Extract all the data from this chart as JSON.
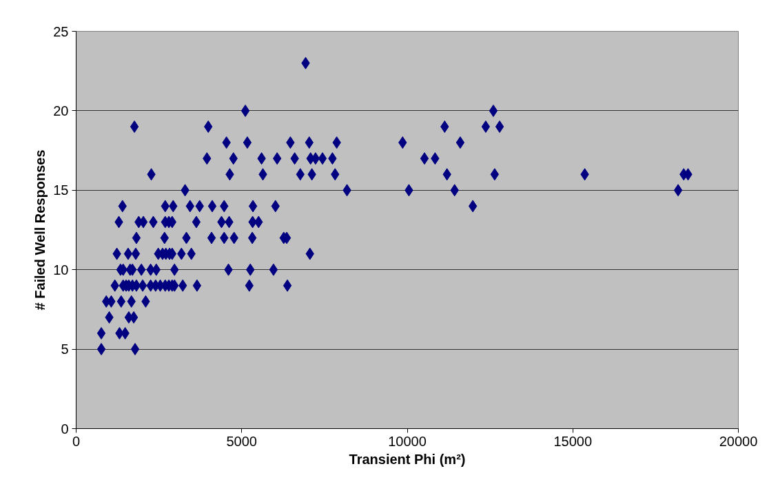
{
  "chart_data": {
    "type": "scatter",
    "xlabel": "Transient Phi (m²)",
    "ylabel": "# Failed Well Responses",
    "xlim": [
      0,
      20000
    ],
    "xticks": [
      0,
      5000,
      10000,
      15000,
      20000
    ],
    "ylim": [
      0,
      25
    ],
    "yticks": [
      0,
      5,
      10,
      15,
      20,
      25
    ],
    "grid": "y",
    "marker": "diamond",
    "series": [
      {
        "color": "#000080",
        "x": [
          6930,
          5110,
          12600,
          11130,
          12370,
          12790,
          1760,
          3990,
          9860,
          11600,
          5170,
          6470,
          7040,
          7870,
          4540,
          10520,
          10840,
          5600,
          6070,
          6600,
          7080,
          7230,
          7440,
          7740,
          3950,
          4750,
          11200,
          12640,
          15360,
          18350,
          18480,
          5640,
          6770,
          7120,
          7820,
          2270,
          4640,
          10050,
          11430,
          18180,
          8180,
          3290,
          11980,
          5340,
          6020,
          1400,
          2690,
          2930,
          3440,
          3730,
          4110,
          4470,
          5330,
          5510,
          1290,
          1890,
          2030,
          2330,
          2690,
          2800,
          2900,
          3630,
          4390,
          4620,
          5320,
          6270,
          6360,
          1820,
          2670,
          3330,
          4090,
          4470,
          4770,
          7060,
          1230,
          1570,
          1800,
          2480,
          2610,
          2710,
          2820,
          2900,
          3180,
          3480,
          5260,
          5960,
          1340,
          1420,
          1630,
          1700,
          1970,
          2250,
          2420,
          2970,
          4600,
          5230,
          6380,
          1170,
          1420,
          1510,
          1590,
          1700,
          1820,
          2010,
          2250,
          2400,
          2540,
          2690,
          2800,
          2900,
          2970,
          3220,
          3650,
          910,
          1060,
          1360,
          1670,
          2100,
          1000,
          1590,
          1740,
          760,
          1310,
          1480,
          760,
          1780
        ],
        "values": [
          23,
          20,
          20,
          19,
          19,
          19,
          19,
          19,
          18,
          18,
          18,
          18,
          18,
          18,
          18,
          17,
          17,
          17,
          17,
          17,
          17,
          17,
          17,
          17,
          17,
          17,
          16,
          16,
          16,
          16,
          16,
          16,
          16,
          16,
          16,
          16,
          16,
          15,
          15,
          15,
          15,
          15,
          14,
          14,
          14,
          14,
          14,
          14,
          14,
          14,
          14,
          14,
          13,
          13,
          13,
          13,
          13,
          13,
          13,
          13,
          13,
          13,
          13,
          13,
          12,
          12,
          12,
          12,
          12,
          12,
          12,
          12,
          12,
          11,
          11,
          11,
          11,
          11,
          11,
          11,
          11,
          11,
          11,
          11,
          10,
          10,
          10,
          10,
          10,
          10,
          10,
          10,
          10,
          10,
          10,
          9,
          9,
          9,
          9,
          9,
          9,
          9,
          9,
          9,
          9,
          9,
          9,
          9,
          9,
          9,
          9,
          9,
          9,
          8,
          8,
          8,
          8,
          8,
          7,
          7,
          7,
          6,
          6,
          6,
          5,
          5
        ]
      }
    ]
  }
}
